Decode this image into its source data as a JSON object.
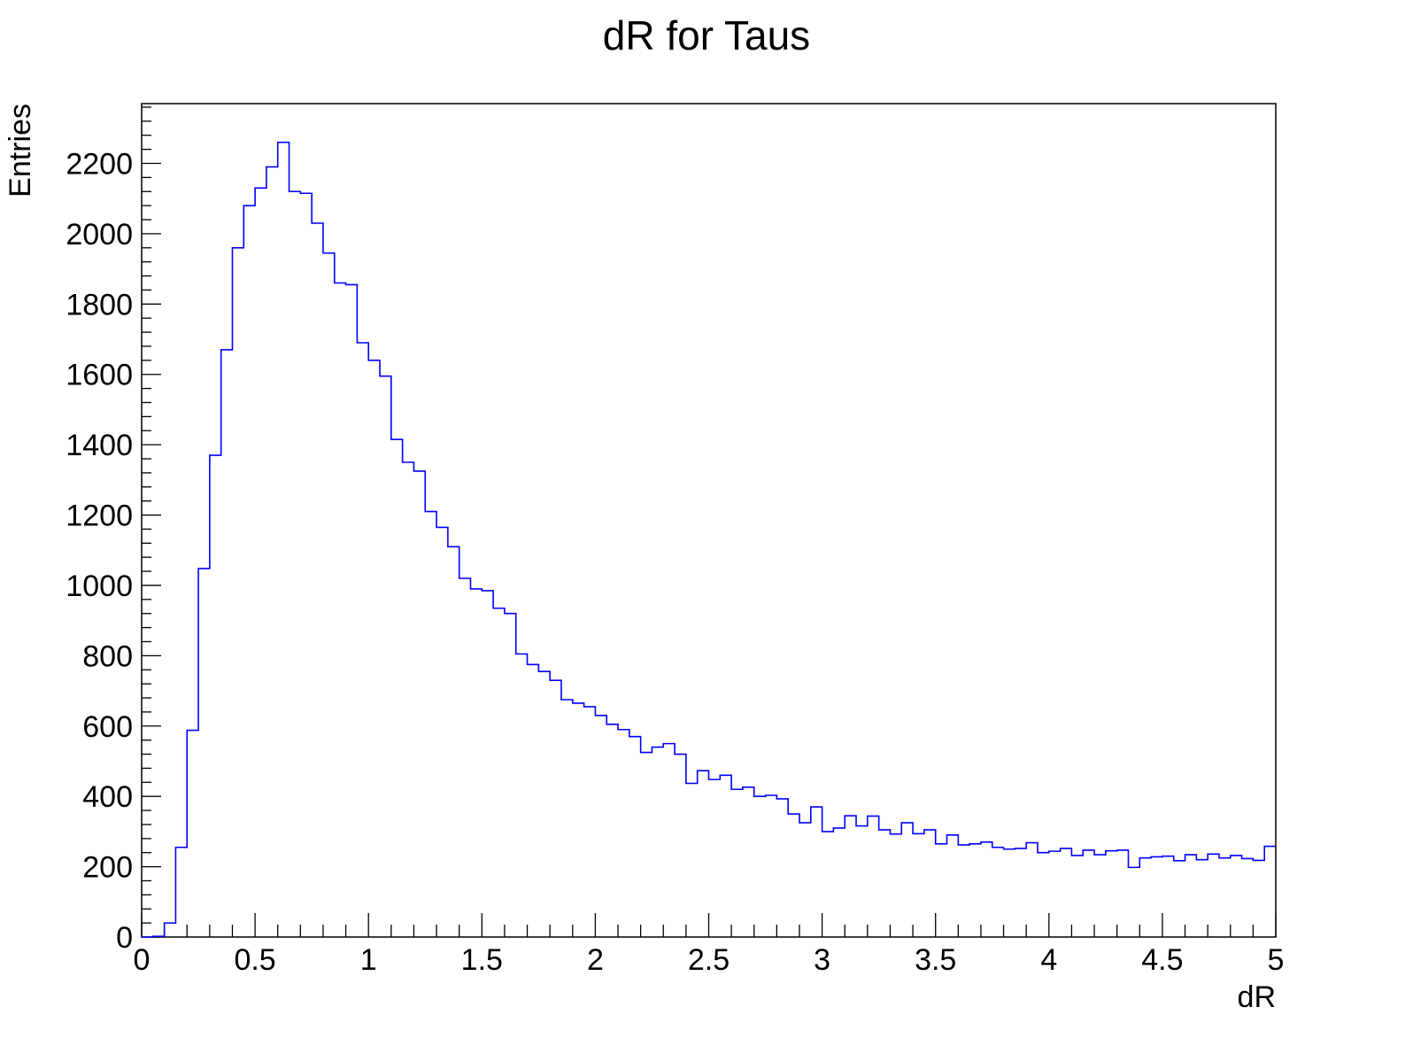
{
  "chart_data": {
    "type": "histogram",
    "title": "dR for Taus",
    "xlabel": "dR",
    "ylabel": "Entries",
    "xlim": [
      0,
      5
    ],
    "ylim": [
      0,
      2370
    ],
    "grid": false,
    "line_color": "#0000ff",
    "bin_width": 0.05,
    "x_ticks": [
      "0",
      "0.5",
      "1",
      "1.5",
      "2",
      "2.5",
      "3",
      "3.5",
      "4",
      "4.5",
      "5"
    ],
    "y_ticks": [
      "0",
      "200",
      "400",
      "600",
      "800",
      "1000",
      "1200",
      "1400",
      "1600",
      "1800",
      "2000",
      "2200"
    ],
    "values": [
      0,
      2,
      40,
      255,
      588,
      1048,
      1370,
      1670,
      1960,
      2080,
      2130,
      2190,
      2260,
      2120,
      2115,
      2030,
      1945,
      1860,
      1855,
      1690,
      1640,
      1595,
      1415,
      1350,
      1325,
      1210,
      1165,
      1110,
      1020,
      990,
      985,
      935,
      920,
      805,
      775,
      755,
      730,
      675,
      665,
      655,
      630,
      605,
      590,
      570,
      525,
      540,
      550,
      520,
      437,
      473,
      448,
      460,
      420,
      426,
      400,
      403,
      393,
      350,
      325,
      370,
      300,
      310,
      345,
      316,
      344,
      305,
      293,
      325,
      294,
      305,
      265,
      290,
      262,
      265,
      270,
      255,
      250,
      252,
      268,
      240,
      244,
      252,
      232,
      247,
      234,
      245,
      247,
      198,
      225,
      228,
      230,
      217,
      234,
      220,
      236,
      225,
      232,
      223,
      218,
      258
    ]
  }
}
